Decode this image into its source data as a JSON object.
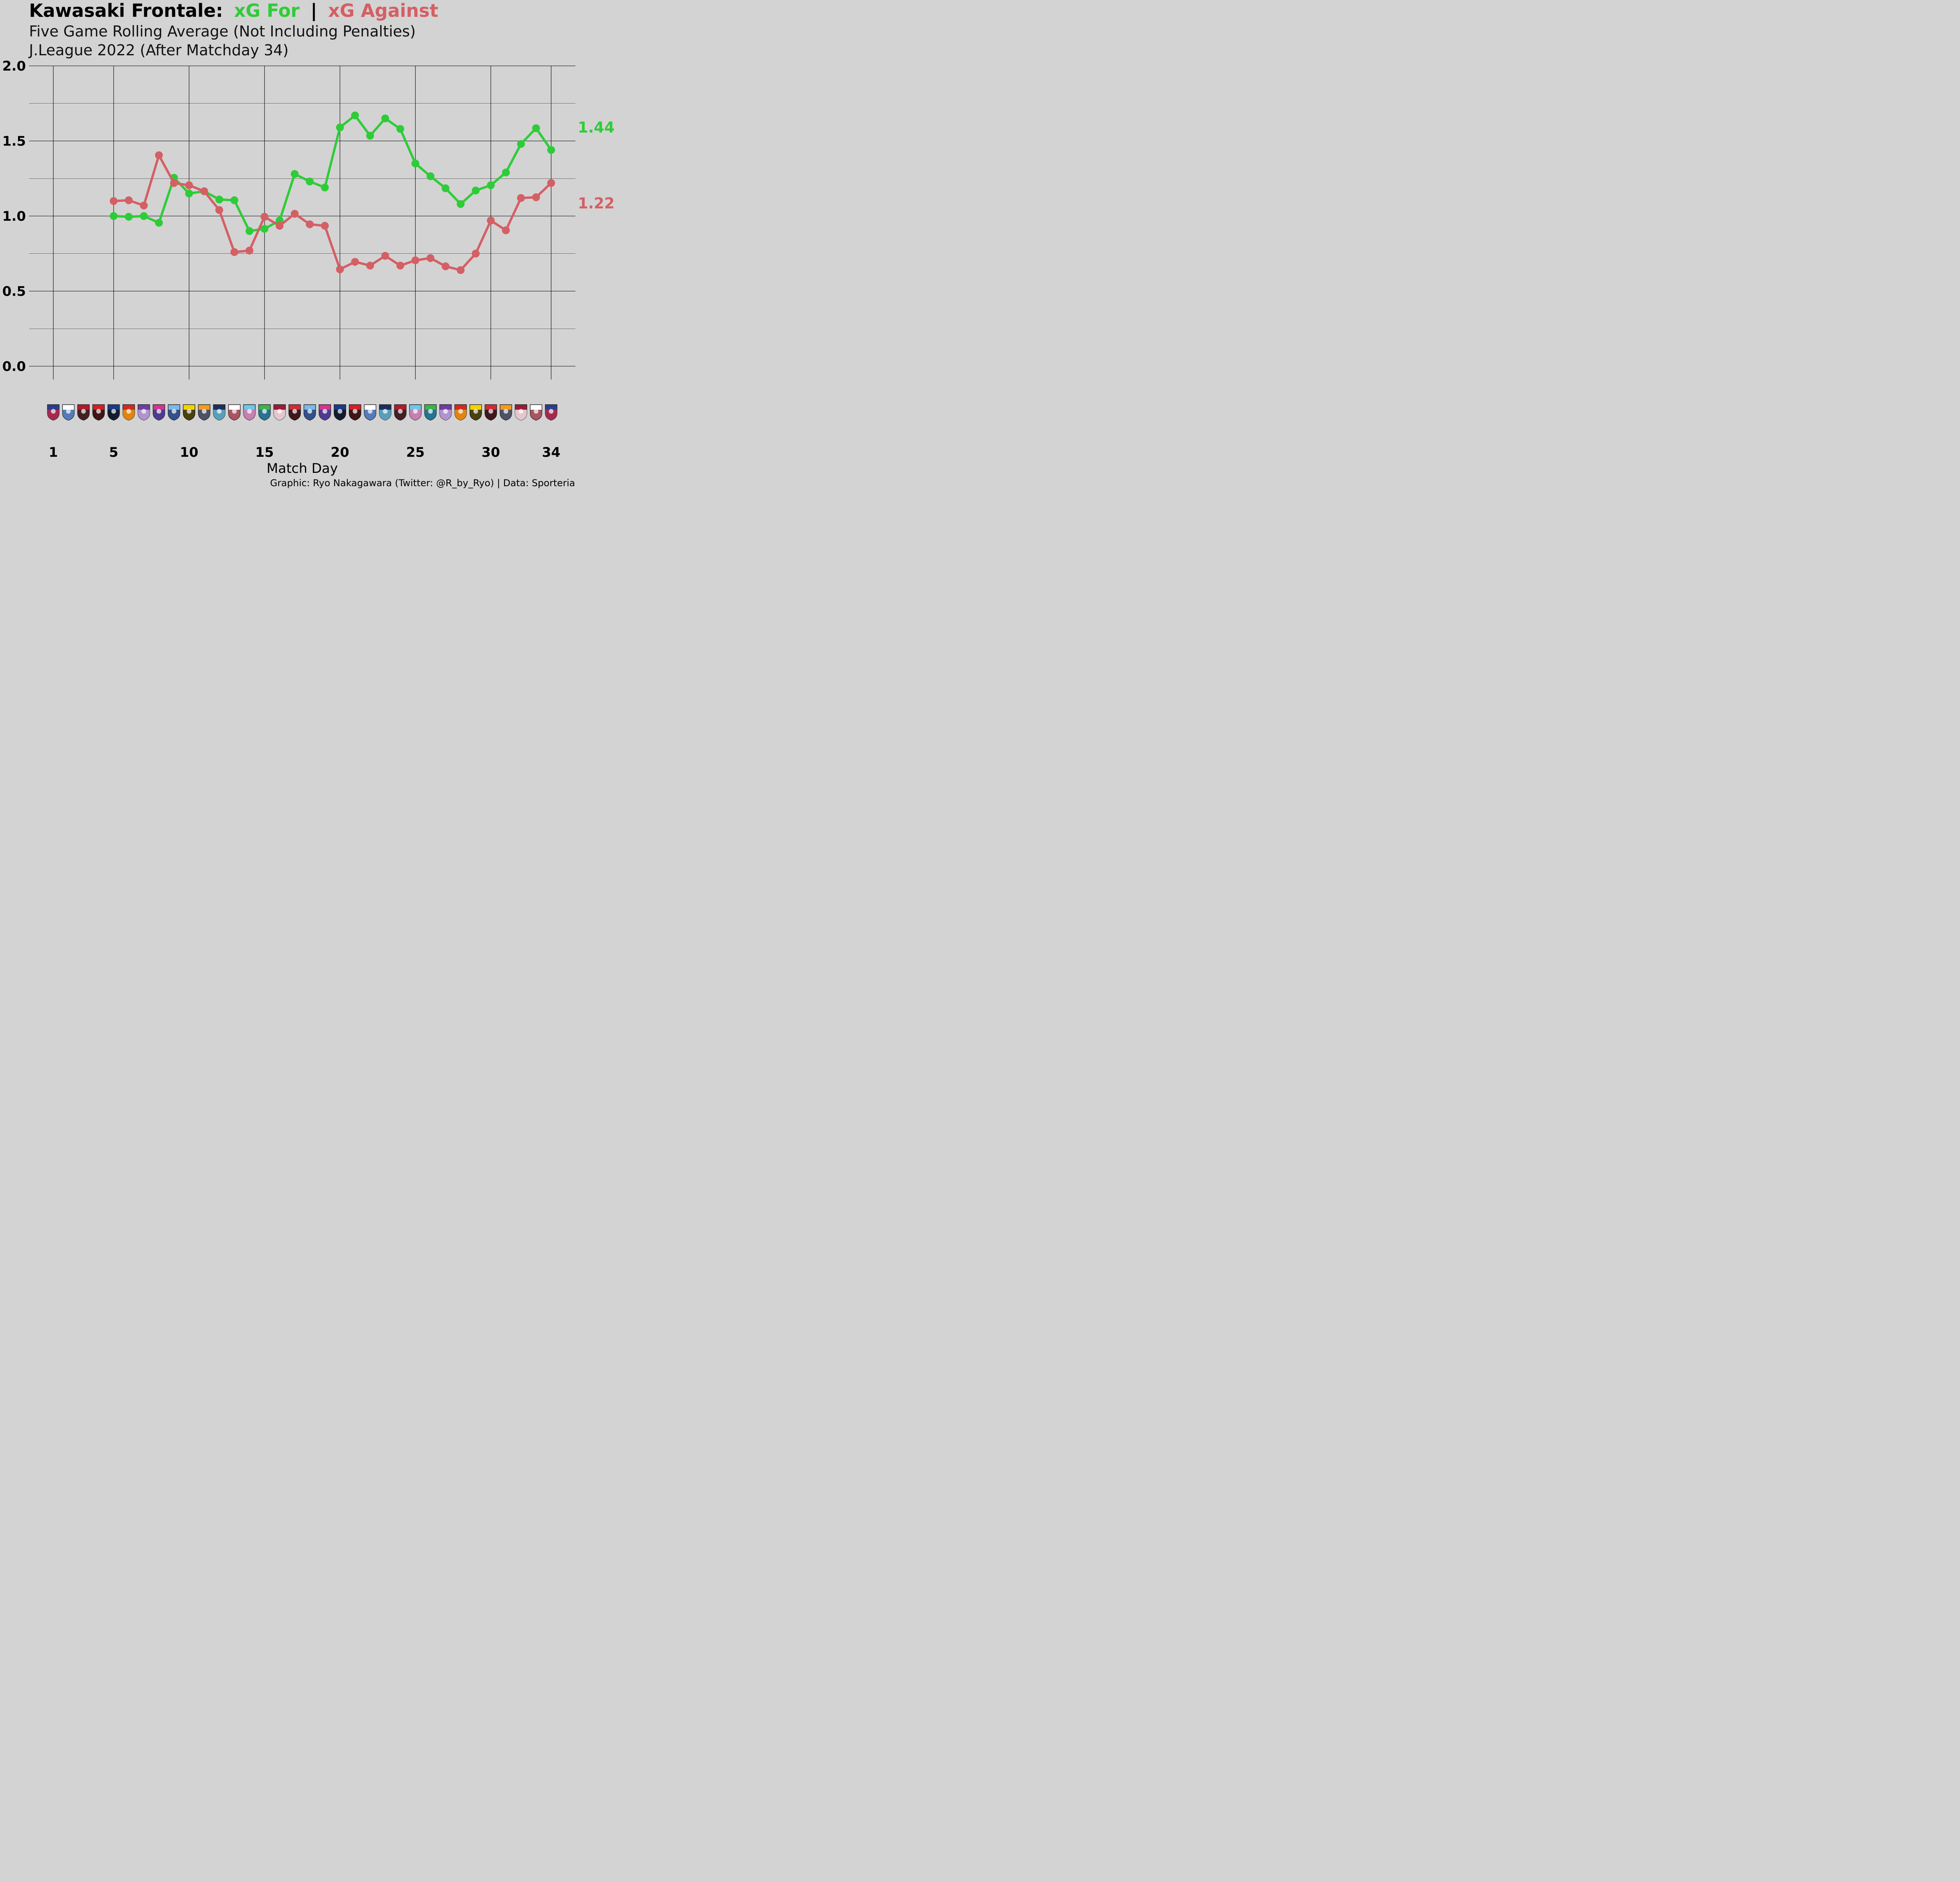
{
  "colors": {
    "background": "#d3d3d3",
    "xg_for": "#2ecc38",
    "xg_against": "#d45f64",
    "grid": "#000000"
  },
  "title": {
    "team": "Kawasaki Frontale:",
    "for_label": "xG For",
    "separator": "|",
    "against_label": "xG Against"
  },
  "subtitle_1": "Five Game Rolling Average (Not Including Penalties)",
  "subtitle_2": "J.League 2022 (After Matchday 34)",
  "caption": "Graphic: Ryo Nakagawara (Twitter: @R_by_Ryo) | Data: Sporteria",
  "opponent_icons": [
    "fc-tokyo-crest-icon",
    "yokohama-fm-crest-icon",
    "kashima-crest-icon",
    "urawa-crest-icon",
    "gamba-osaka-crest-icon",
    "nagoya-crest-icon",
    "hiroshima-crest-icon",
    "cerezo-osaka-crest-icon",
    "jubilo-iwata-crest-icon",
    "kashiwa-crest-icon",
    "shimizu-crest-icon",
    "avispa-fukuoka-crest-icon",
    "vissel-kobe-crest-icon",
    "sagan-tosu-crest-icon",
    "shonan-crest-icon",
    "kyoto-crest-icon",
    "consadole-crest-icon",
    "jubilo-iwata-crest-icon",
    "cerezo-osaka-crest-icon",
    "gamba-osaka-crest-icon",
    "urawa-crest-icon",
    "yokohama-fm-crest-icon",
    "avispa-fukuoka-crest-icon",
    "kashima-crest-icon",
    "sagan-tosu-crest-icon",
    "shonan-crest-icon",
    "hiroshima-crest-icon",
    "nagoya-crest-icon",
    "kashiwa-crest-icon",
    "consadole-crest-icon",
    "shimizu-crest-icon",
    "kyoto-crest-icon",
    "vissel-kobe-crest-icon",
    "fc-tokyo-crest-icon"
  ],
  "chart_data": {
    "type": "line",
    "xlabel": "Match Day",
    "ylabel": "",
    "xlim": [
      1,
      34
    ],
    "ylim": [
      0,
      2
    ],
    "x_ticks": [
      1,
      5,
      10,
      15,
      20,
      25,
      30,
      34
    ],
    "y_ticks": [
      "0.0",
      "0.5",
      "1.0",
      "1.5",
      "2.0"
    ],
    "grid": true,
    "series": [
      {
        "name": "xG For",
        "color": "#2ecc38",
        "end_label": "1.44",
        "x": [
          5,
          6,
          7,
          8,
          9,
          10,
          11,
          12,
          13,
          14,
          15,
          16,
          17,
          18,
          19,
          20,
          21,
          22,
          23,
          24,
          25,
          26,
          27,
          28,
          29,
          30,
          31,
          32,
          33,
          34
        ],
        "values": [
          1.0,
          0.995,
          1.0,
          0.955,
          1.255,
          1.15,
          1.165,
          1.11,
          1.105,
          0.9,
          0.915,
          0.97,
          1.28,
          1.23,
          1.19,
          1.59,
          1.67,
          1.535,
          1.65,
          1.58,
          1.35,
          1.265,
          1.185,
          1.08,
          1.17,
          1.205,
          1.29,
          1.48,
          1.585,
          1.44
        ]
      },
      {
        "name": "xG Against",
        "color": "#d45f64",
        "end_label": "1.22",
        "x": [
          5,
          6,
          7,
          8,
          9,
          10,
          11,
          12,
          13,
          14,
          15,
          16,
          17,
          18,
          19,
          20,
          21,
          22,
          23,
          24,
          25,
          26,
          27,
          28,
          29,
          30,
          31,
          32,
          33,
          34
        ],
        "values": [
          1.1,
          1.105,
          1.07,
          1.405,
          1.22,
          1.205,
          1.165,
          1.04,
          0.76,
          0.77,
          0.995,
          0.935,
          1.015,
          0.945,
          0.935,
          0.645,
          0.695,
          0.67,
          0.735,
          0.67,
          0.705,
          0.72,
          0.665,
          0.64,
          0.75,
          0.97,
          0.905,
          1.12,
          1.125,
          1.22
        ]
      }
    ]
  }
}
